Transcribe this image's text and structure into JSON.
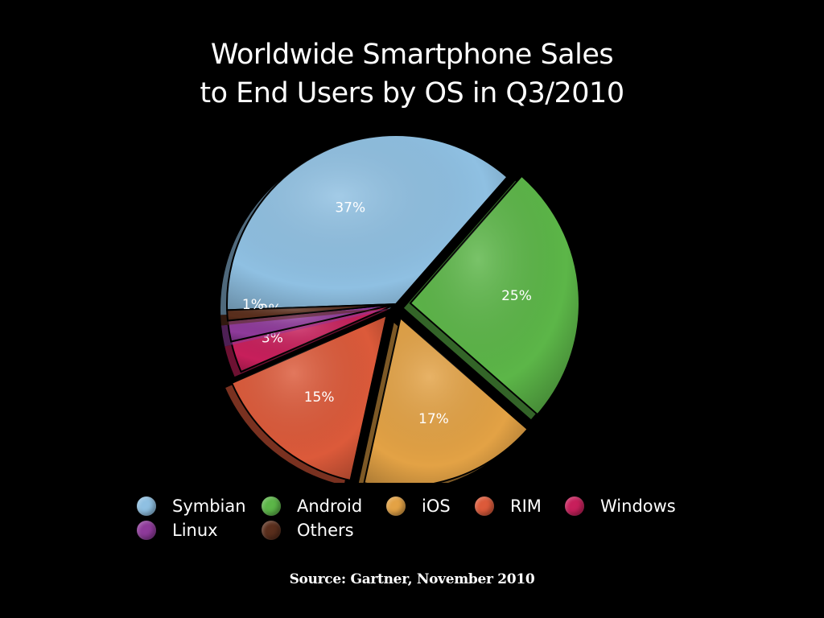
{
  "chart_data": {
    "type": "pie",
    "title_lines": [
      "Worldwide Smartphone Sales",
      "to End Users by OS in Q3/2010"
    ],
    "slices": [
      {
        "name": "Symbian",
        "value": 37,
        "label": "37%",
        "color": "#8fc0e2"
      },
      {
        "name": "Android",
        "value": 25,
        "label": "25%",
        "color": "#5cb648"
      },
      {
        "name": "iOS",
        "value": 17,
        "label": "17%",
        "color": "#e3a245"
      },
      {
        "name": "RIM",
        "value": 15,
        "label": "15%",
        "color": "#dc5a3a"
      },
      {
        "name": "Windows",
        "value": 3,
        "label": "3%",
        "color": "#c71f5b"
      },
      {
        "name": "Linux",
        "value": 2,
        "label": "2%",
        "color": "#8e3a9a"
      },
      {
        "name": "Others",
        "value": 1,
        "label": "1%",
        "color": "#5a2e1c"
      }
    ],
    "exploded": [
      "Android",
      "iOS",
      "RIM"
    ],
    "legend": {
      "placement": "bottom"
    },
    "source": "Source:  Gartner, November 2010"
  }
}
